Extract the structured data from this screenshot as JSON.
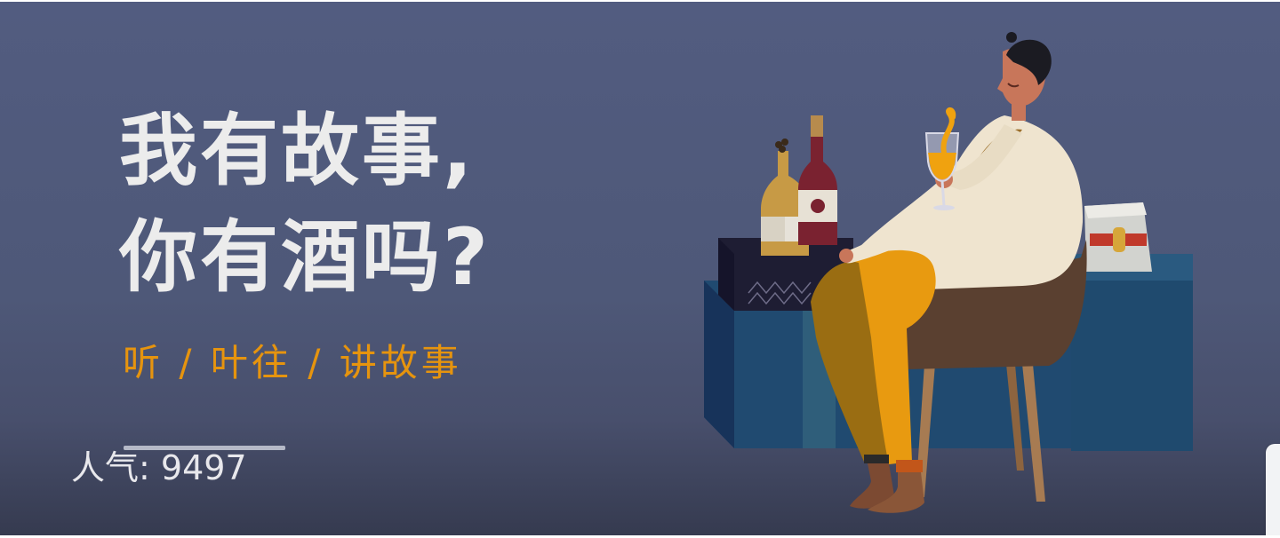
{
  "banner": {
    "headline_line1": "我有故事,",
    "headline_line2": "你有酒吗?",
    "subtitle": "听 / 叶往 / 讲故事",
    "popularity_label": "人气: ",
    "popularity_value": "9497",
    "progress_fraction": 1.0
  },
  "colors": {
    "background": "#525c80",
    "headline": "#ececec",
    "subtitle_accent": "#e6940e",
    "popularity_text": "#e8e8ec"
  },
  "icons": {
    "illustration": "man-drinking-wine-illustration",
    "side_tab": "side-tab"
  }
}
